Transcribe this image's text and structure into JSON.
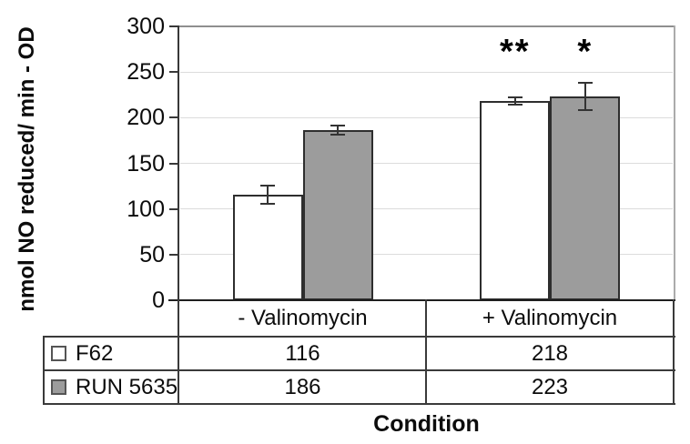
{
  "chart_data": {
    "type": "bar",
    "title": "",
    "xlabel": "Condition",
    "ylabel": "nmol NO reduced/ min - OD",
    "categories": [
      "- Valinomycin",
      "+ Valinomycin"
    ],
    "series": [
      {
        "name": "F62",
        "values": [
          116,
          218
        ],
        "errors": [
          10,
          4
        ],
        "color": "#ffffff"
      },
      {
        "name": "RUN 5635",
        "values": [
          186,
          223
        ],
        "errors": [
          5,
          15
        ],
        "color": "#9c9c9c"
      }
    ],
    "annotations": [
      {
        "text": "**",
        "category": 1,
        "series": 0
      },
      {
        "text": "*",
        "category": 1,
        "series": 1
      }
    ],
    "ylim": [
      0,
      300
    ],
    "yticks": [
      0,
      50,
      100,
      150,
      200,
      250,
      300
    ],
    "grid": true,
    "legend_position": "data-table-left",
    "data_table": true
  },
  "colors": {
    "bar_fill_f62": "#ffffff",
    "bar_fill_run5635": "#9c9c9c",
    "bar_stroke": "#2e2e2e",
    "gridline": "#dcdcdc",
    "axis": "#383838",
    "plot_border_top": "#8f8f8f",
    "plot_border_right": "#ababab",
    "table_border": "#3a3a3a"
  }
}
